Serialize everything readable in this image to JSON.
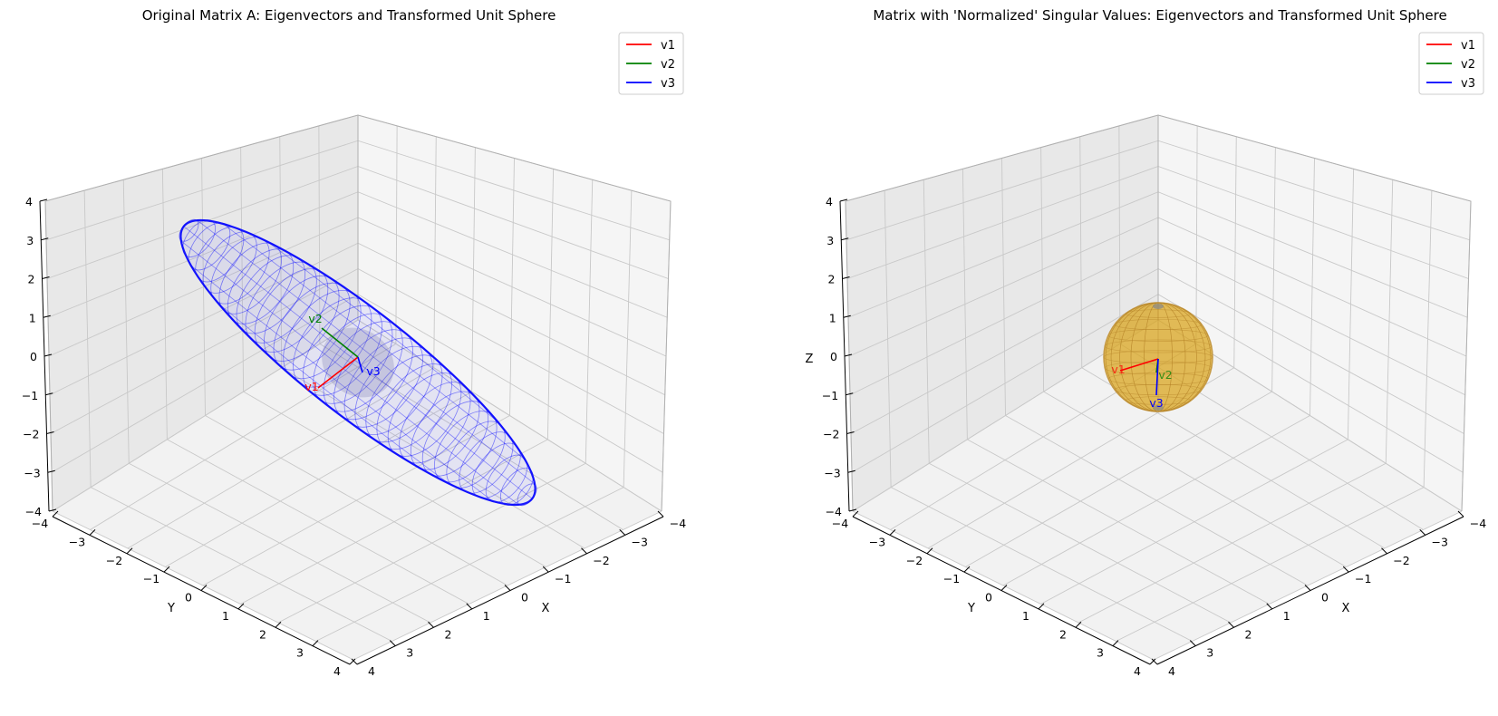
{
  "chart_data": [
    {
      "type": "3d-surface",
      "title": "Original Matrix A: Eigenvectors and Transformed Unit Sphere",
      "xlabel": "X",
      "ylabel": "Y",
      "zlabel": "",
      "xlim": [
        -4,
        4
      ],
      "ylim": [
        -4,
        4
      ],
      "zlim": [
        -4,
        4
      ],
      "x_ticks": [
        -4,
        -3,
        -2,
        -1,
        0,
        1,
        2,
        3,
        4
      ],
      "y_ticks": [
        -4,
        -3,
        -2,
        -1,
        0,
        1,
        2,
        3,
        4
      ],
      "z_ticks": [
        -4,
        -3,
        -2,
        -1,
        0,
        1,
        2,
        3,
        4
      ],
      "grid": true,
      "legend_position": "top-right",
      "surface": {
        "shape": "ellipsoid",
        "color": "#0000ff",
        "style": "wireframe"
      },
      "series": [
        {
          "name": "v1",
          "color": "#ff0000"
        },
        {
          "name": "v2",
          "color": "#008000"
        },
        {
          "name": "v3",
          "color": "#0000ff"
        }
      ]
    },
    {
      "type": "3d-surface",
      "title": "Matrix with 'Normalized' Singular Values: Eigenvectors and Transformed Unit Sphere",
      "xlabel": "X",
      "ylabel": "Y",
      "zlabel": "Z",
      "xlim": [
        -4,
        4
      ],
      "ylim": [
        -4,
        4
      ],
      "zlim": [
        -4,
        4
      ],
      "x_ticks": [
        -4,
        -3,
        -2,
        -1,
        0,
        1,
        2,
        3,
        4
      ],
      "y_ticks": [
        -4,
        -3,
        -2,
        -1,
        0,
        1,
        2,
        3,
        4
      ],
      "z_ticks": [
        -4,
        -3,
        -2,
        -1,
        0,
        1,
        2,
        3,
        4
      ],
      "grid": true,
      "legend_position": "top-right",
      "surface": {
        "shape": "sphere",
        "radius": 1,
        "color": "#daa520",
        "style": "surface"
      },
      "series": [
        {
          "name": "v1",
          "color": "#ff0000"
        },
        {
          "name": "v2",
          "color": "#008000"
        },
        {
          "name": "v3",
          "color": "#0000ff"
        }
      ]
    }
  ]
}
